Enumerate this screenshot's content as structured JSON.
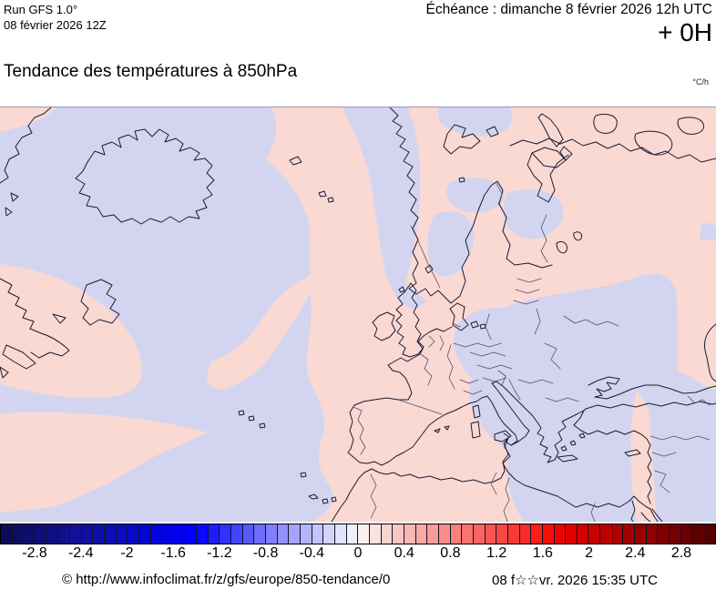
{
  "header": {
    "run_line1": "Run GFS 1.0°",
    "run_line2": "08 février 2026 12Z",
    "echeance": "Échéance : dimanche 8 février 2026 12h UTC",
    "step": "+ 0H",
    "title": "Tendance des températures à 850hPa",
    "unit": "°C/h"
  },
  "map": {
    "positive_color": "#f9d9d2",
    "negative_color": "#d3d5f0",
    "coast_color": "#1b1b33",
    "border_color": "#50506e",
    "description": "Tendance de température 850hPa : zones roses = hausse (0 à +0.4 °C/h), zones bleu-lavande = baisse (0 à -0.4 °C/h)"
  },
  "colorbar": {
    "min": -3.1,
    "max": 3.1,
    "step": 0.1,
    "colors": [
      "#0b0b5a",
      "#0c0c64",
      "#0d0d6e",
      "#0e0e78",
      "#0f0f82",
      "#10108c",
      "#111196",
      "#1010a0",
      "#0e0eaa",
      "#0c0cb4",
      "#0a0abe",
      "#0808c8",
      "#0606d2",
      "#0404dc",
      "#0202e6",
      "#0101f0",
      "#0000fa",
      "#0808ff",
      "#1c1cff",
      "#3030ff",
      "#4444ff",
      "#5858ff",
      "#6c6cff",
      "#8080ff",
      "#9292ff",
      "#a4a4fe",
      "#b4b4fc",
      "#c4c4fa",
      "#d4d4fa",
      "#e2e2fa",
      "#efeffc",
      "#fcefec",
      "#fae2de",
      "#fad4d0",
      "#fac6c2",
      "#fab8b4",
      "#faaaa6",
      "#fa9c98",
      "#fa8e8a",
      "#fa807c",
      "#fa726e",
      "#fa6460",
      "#fa5652",
      "#fa4844",
      "#fa3a36",
      "#fa2c28",
      "#fa1e1a",
      "#f51008",
      "#ec0400",
      "#e00000",
      "#d40000",
      "#c80000",
      "#bc0000",
      "#b00000",
      "#a40000",
      "#980000",
      "#8c0000",
      "#800000",
      "#740000",
      "#680000",
      "#5c0000",
      "#520000"
    ],
    "labels": [
      {
        "text": "-2.8",
        "value": -2.8
      },
      {
        "text": "-2.4",
        "value": -2.4
      },
      {
        "text": "-2",
        "value": -2.0
      },
      {
        "text": "-1.6",
        "value": -1.6
      },
      {
        "text": "-1.2",
        "value": -1.2
      },
      {
        "text": "-0.8",
        "value": -0.8
      },
      {
        "text": "-0.4",
        "value": -0.4
      },
      {
        "text": "0",
        "value": 0.0
      },
      {
        "text": "0.4",
        "value": 0.4
      },
      {
        "text": "0.8",
        "value": 0.8
      },
      {
        "text": "1.2",
        "value": 1.2
      },
      {
        "text": "1.6",
        "value": 1.6
      },
      {
        "text": "2",
        "value": 2.0
      },
      {
        "text": "2.4",
        "value": 2.4
      },
      {
        "text": "2.8",
        "value": 2.8
      }
    ]
  },
  "footer": {
    "copyright": "© http://www.infoclimat.fr/z/gfs/europe/850-tendance/0",
    "datetime": "08 f☆☆vr. 2026 15:35 UTC"
  }
}
